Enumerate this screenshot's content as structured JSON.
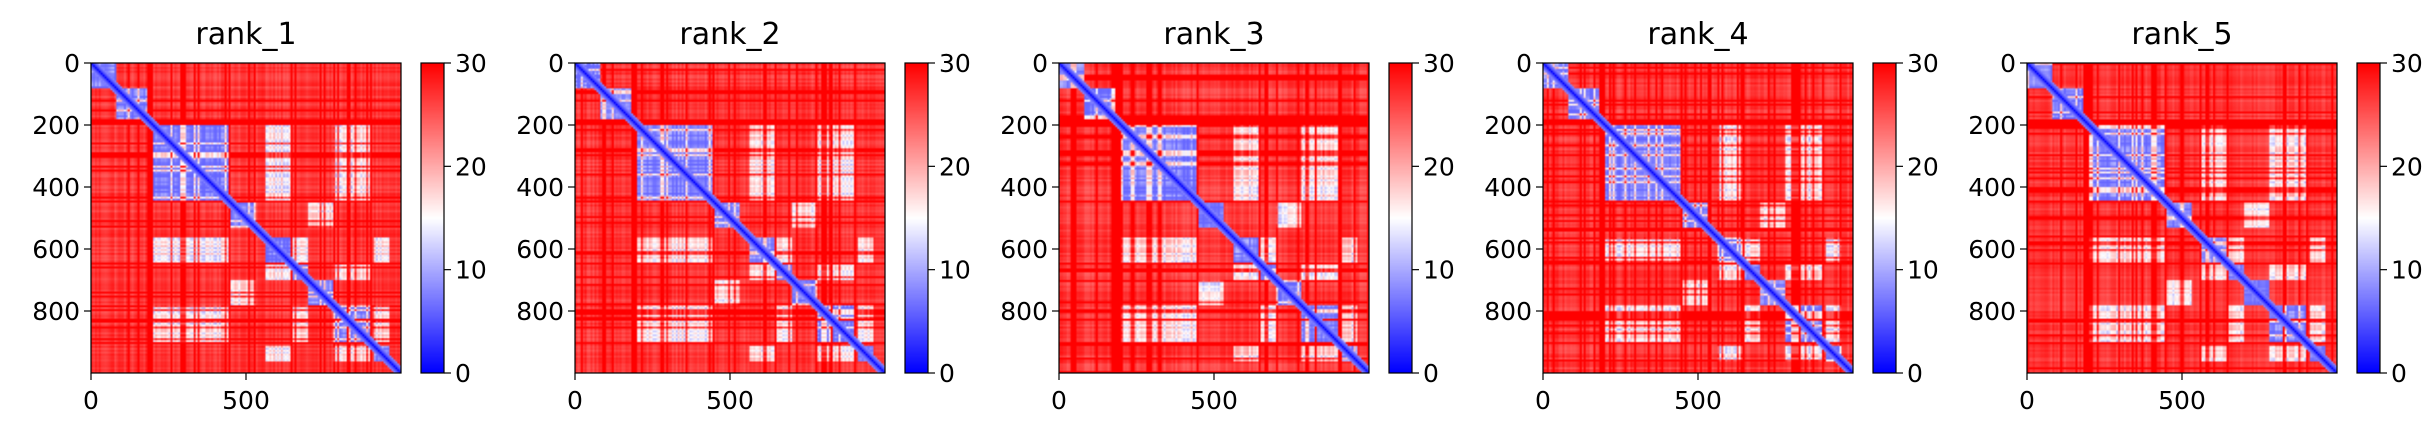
{
  "chart_data": [
    {
      "type": "heatmap",
      "title": "rank_1",
      "xticks": [
        "0",
        "500"
      ],
      "yticks": [
        "0",
        "200",
        "400",
        "600",
        "800"
      ],
      "colorbar": {
        "ticks": [
          "0",
          "10",
          "20",
          "30"
        ],
        "range": [
          0,
          30
        ],
        "colormap": [
          "#0000ff",
          "#ffffff",
          "#ff0000"
        ]
      },
      "matrix_size": 1000,
      "diagonal": "blue"
    },
    {
      "type": "heatmap",
      "title": "rank_2",
      "xticks": [
        "0",
        "500"
      ],
      "yticks": [
        "0",
        "200",
        "400",
        "600",
        "800"
      ],
      "colorbar": {
        "ticks": [
          "0",
          "10",
          "20",
          "30"
        ],
        "range": [
          0,
          30
        ],
        "colormap": [
          "#0000ff",
          "#ffffff",
          "#ff0000"
        ]
      },
      "matrix_size": 1000,
      "diagonal": "blue"
    },
    {
      "type": "heatmap",
      "title": "rank_3",
      "xticks": [
        "0",
        "500"
      ],
      "yticks": [
        "0",
        "200",
        "400",
        "600",
        "800"
      ],
      "colorbar": {
        "ticks": [
          "0",
          "10",
          "20",
          "30"
        ],
        "range": [
          0,
          30
        ],
        "colormap": [
          "#0000ff",
          "#ffffff",
          "#ff0000"
        ]
      },
      "matrix_size": 1000,
      "diagonal": "blue"
    },
    {
      "type": "heatmap",
      "title": "rank_4",
      "xticks": [
        "0",
        "500"
      ],
      "yticks": [
        "0",
        "200",
        "400",
        "600",
        "800"
      ],
      "colorbar": {
        "ticks": [
          "0",
          "10",
          "20",
          "30"
        ],
        "range": [
          0,
          30
        ],
        "colormap": [
          "#0000ff",
          "#ffffff",
          "#ff0000"
        ]
      },
      "matrix_size": 1000,
      "diagonal": "blue"
    },
    {
      "type": "heatmap",
      "title": "rank_5",
      "xticks": [
        "0",
        "500"
      ],
      "yticks": [
        "0",
        "200",
        "400",
        "600",
        "800"
      ],
      "colorbar": {
        "ticks": [
          "0",
          "10",
          "20",
          "30"
        ],
        "range": [
          0,
          30
        ],
        "colormap": [
          "#0000ff",
          "#ffffff",
          "#ff0000"
        ]
      },
      "matrix_size": 1000,
      "diagonal": "blue"
    }
  ]
}
